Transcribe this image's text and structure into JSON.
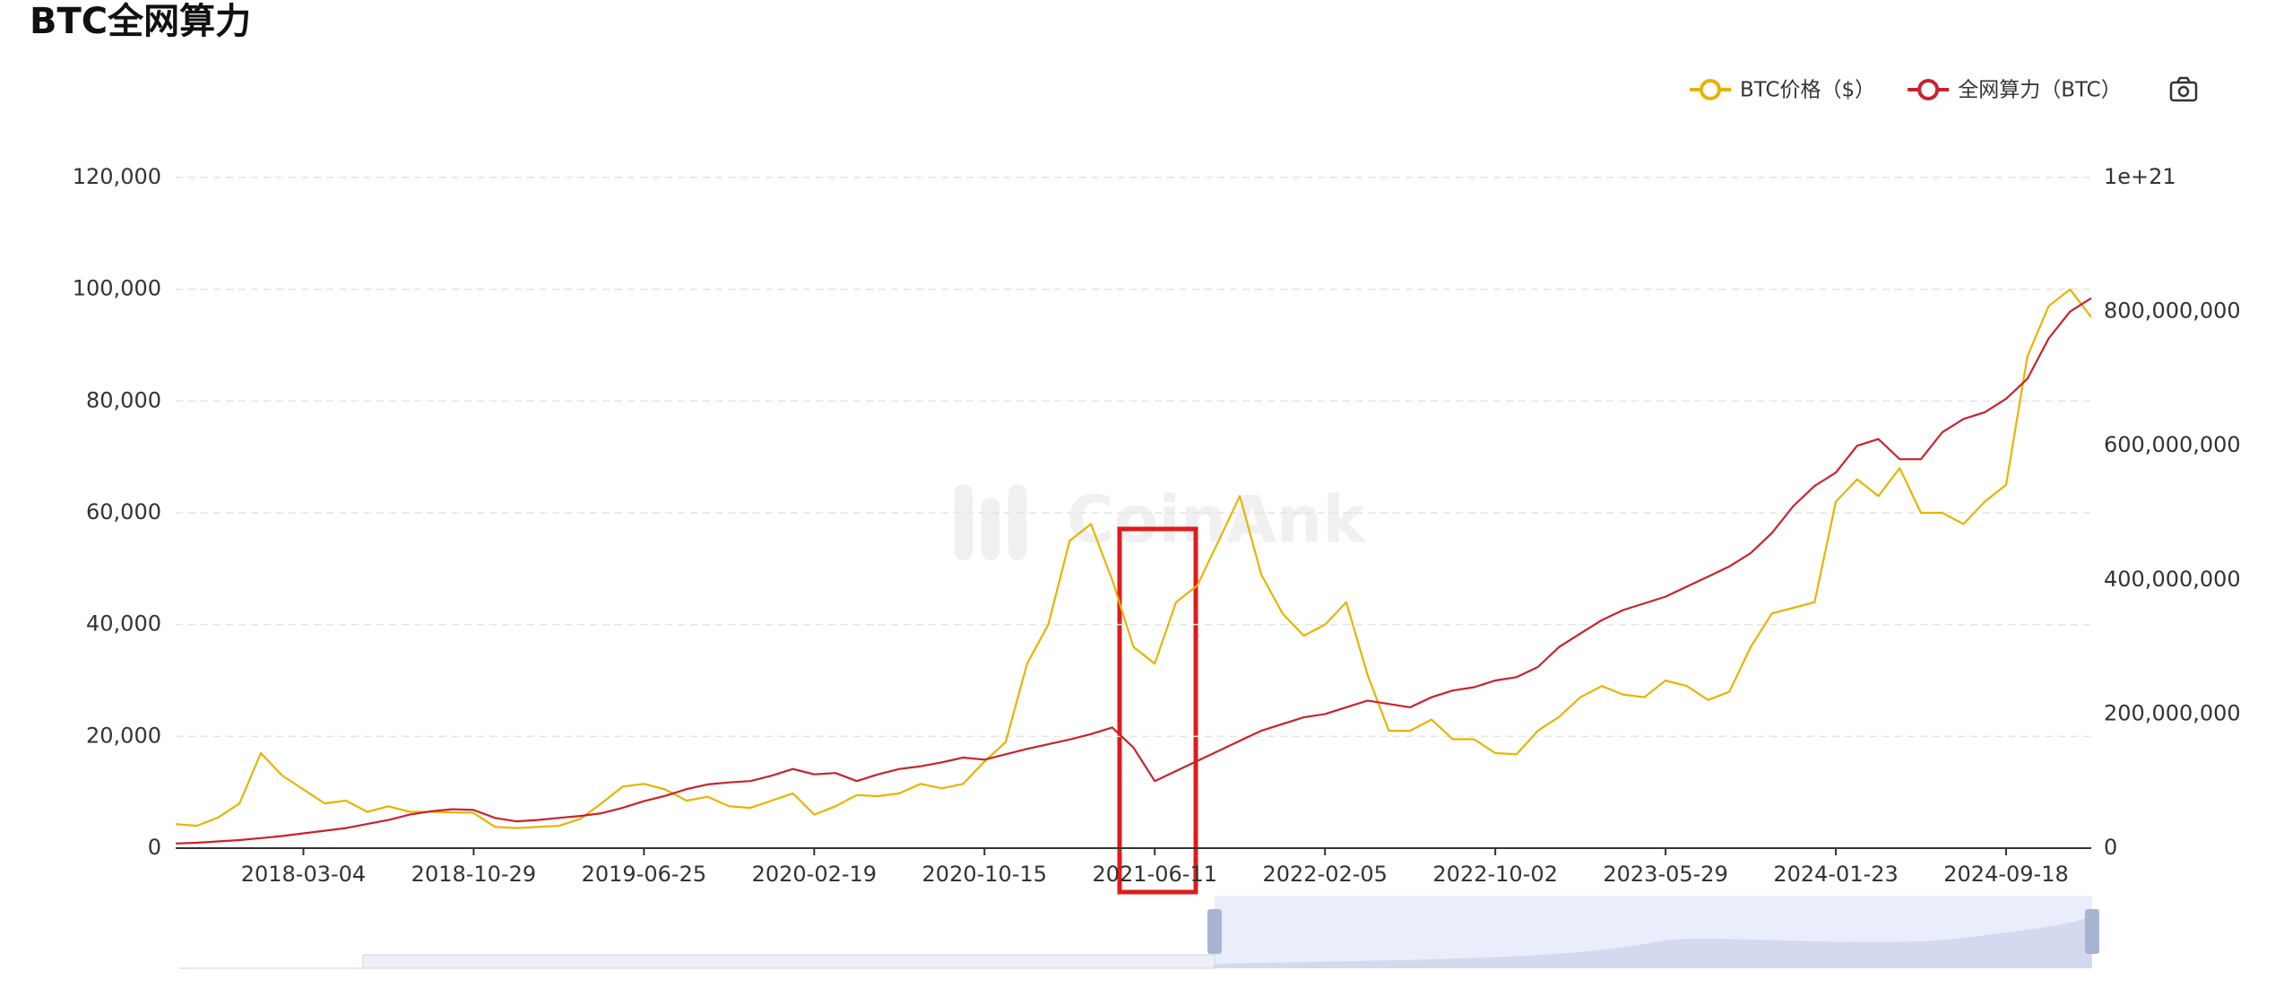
{
  "chart_data": {
    "type": "line",
    "title": "BTC全网算力",
    "watermark": "CoinAnk",
    "y2_label": "1e+21",
    "categories": [
      null,
      null,
      null,
      null,
      null,
      null,
      "2018-03-04",
      null,
      null,
      null,
      null,
      null,
      null,
      null,
      "2018-10-29",
      null,
      null,
      null,
      null,
      null,
      null,
      null,
      "2019-06-25",
      null,
      null,
      null,
      null,
      null,
      null,
      null,
      "2020-02-19",
      null,
      null,
      null,
      null,
      null,
      null,
      null,
      "2020-10-15",
      null,
      null,
      null,
      null,
      null,
      null,
      null,
      "2021-06-11",
      null,
      null,
      null,
      null,
      null,
      null,
      null,
      "2022-02-05",
      null,
      null,
      null,
      null,
      null,
      null,
      null,
      "2022-10-02",
      null,
      null,
      null,
      null,
      null,
      null,
      null,
      "2023-05-29",
      null,
      null,
      null,
      null,
      null,
      null,
      null,
      "2024-01-23",
      null,
      null,
      null,
      null,
      null,
      null,
      null,
      "2024-09-18",
      null,
      null,
      null,
      null
    ],
    "series": [
      {
        "name": "BTC价格（$）",
        "color": "#e6b400",
        "axis": "y",
        "values": [
          4300,
          4000,
          5500,
          8000,
          17000,
          13000,
          10500,
          8000,
          8500,
          6500,
          7500,
          6500,
          6500,
          6400,
          6300,
          3800,
          3600,
          3800,
          4000,
          5200,
          8000,
          11000,
          11500,
          10500,
          8500,
          9200,
          7500,
          7200,
          8500,
          9800,
          6000,
          7500,
          9500,
          9300,
          9800,
          11500,
          10700,
          11500,
          15500,
          19000,
          33000,
          40000,
          55000,
          58000,
          48000,
          36000,
          33000,
          44000,
          47000,
          55000,
          63000,
          49000,
          42000,
          38000,
          40000,
          44000,
          31000,
          21000,
          21000,
          23000,
          19500,
          19500,
          17000,
          16800,
          21000,
          23500,
          27000,
          29000,
          27500,
          27000,
          30000,
          29000,
          26500,
          28000,
          36000,
          42000,
          43000,
          44000,
          62000,
          66000,
          63000,
          68000,
          60000,
          60000,
          58000,
          62000,
          65000,
          88000,
          97000,
          100000,
          95000
        ]
      },
      {
        "name": "全网算力（BTC）",
        "color": "#c8232c",
        "axis": "y2",
        "values": [
          7000000,
          8000000,
          10000000,
          12000000,
          15000000,
          18000000,
          22000000,
          26000000,
          30000000,
          36000000,
          42000000,
          50000000,
          55000000,
          58000000,
          57000000,
          45000000,
          40000000,
          42000000,
          45000000,
          48000000,
          52000000,
          60000000,
          70000000,
          78000000,
          88000000,
          95000000,
          98000000,
          100000000,
          108000000,
          118000000,
          110000000,
          112000000,
          100000000,
          110000000,
          118000000,
          122000000,
          128000000,
          135000000,
          132000000,
          140000000,
          148000000,
          155000000,
          162000000,
          170000000,
          180000000,
          150000000,
          100000000,
          115000000,
          130000000,
          145000000,
          160000000,
          175000000,
          185000000,
          195000000,
          200000000,
          210000000,
          220000000,
          215000000,
          210000000,
          225000000,
          235000000,
          240000000,
          250000000,
          255000000,
          270000000,
          300000000,
          320000000,
          340000000,
          355000000,
          365000000,
          375000000,
          390000000,
          405000000,
          420000000,
          440000000,
          470000000,
          510000000,
          540000000,
          560000000,
          600000000,
          610000000,
          580000000,
          580000000,
          620000000,
          640000000,
          650000000,
          670000000,
          700000000,
          760000000,
          800000000,
          820000000
        ]
      }
    ],
    "ylim": [
      0,
      120000
    ],
    "yticks": [
      0,
      {
        "value": 20000,
        "label": "20,000"
      },
      {
        "value": 40000,
        "label": "40,000"
      },
      {
        "value": 60000,
        "label": "60,000"
      },
      {
        "value": 80000,
        "label": "80,000"
      },
      {
        "value": 100000,
        "label": "100,000"
      },
      {
        "value": 120000,
        "label": "120,000"
      }
    ],
    "y2lim": [
      0,
      1000000000
    ],
    "y2ticks": [
      0,
      {
        "value": 200000000,
        "label": "200,000,000"
      },
      {
        "value": 400000000,
        "label": "400,000,000"
      },
      {
        "value": 600000000,
        "label": "600,000,000"
      },
      {
        "value": 800000000,
        "label": "800,000,000"
      }
    ],
    "grid": true,
    "legend": "top-right"
  }
}
